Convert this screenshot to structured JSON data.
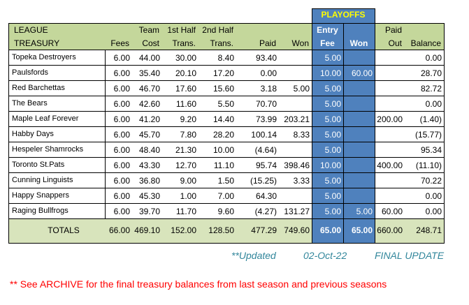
{
  "header": {
    "playoffs": "PLAYOFFS",
    "row1": [
      "LEAGUE",
      "",
      "Team",
      "1st Half",
      "2nd Half",
      "",
      "",
      "Entry",
      "",
      "Paid",
      ""
    ],
    "row2": [
      "TREASURY",
      "Fees",
      "Cost",
      "Trans.",
      "Trans.",
      "Paid",
      "Won",
      "Fee",
      "Won",
      "Out",
      "Balance"
    ]
  },
  "rows": [
    [
      "Topeka Destroyers",
      "6.00",
      "44.00",
      "30.00",
      "8.40",
      "93.40",
      "",
      "5.00",
      "",
      "",
      "0.00"
    ],
    [
      "Paulsfords",
      "6.00",
      "35.40",
      "20.10",
      "17.20",
      "0.00",
      "",
      "10.00",
      "60.00",
      "",
      "28.70"
    ],
    [
      "Red Barchettas",
      "6.00",
      "46.70",
      "17.60",
      "15.60",
      "3.18",
      "5.00",
      "5.00",
      "",
      "",
      "82.72"
    ],
    [
      "The Bears",
      "6.00",
      "42.60",
      "11.60",
      "5.50",
      "70.70",
      "",
      "5.00",
      "",
      "",
      "0.00"
    ],
    [
      "Maple Leaf Forever",
      "6.00",
      "41.20",
      "9.20",
      "14.40",
      "73.99",
      "203.21",
      "5.00",
      "",
      "200.00",
      "(1.40)"
    ],
    [
      "Habby Days",
      "6.00",
      "45.70",
      "7.80",
      "28.20",
      "100.14",
      "8.33",
      "5.00",
      "",
      "",
      "(15.77)"
    ],
    [
      "Hespeler Shamrocks",
      "6.00",
      "48.40",
      "21.30",
      "10.00",
      "(4.64)",
      "",
      "5.00",
      "",
      "",
      "95.34"
    ],
    [
      "Toronto St.Pats",
      "6.00",
      "43.30",
      "12.70",
      "11.10",
      "95.74",
      "398.46",
      "10.00",
      "",
      "400.00",
      "(11.10)"
    ],
    [
      "Cunning Linguists",
      "6.00",
      "36.80",
      "9.00",
      "1.50",
      "(15.25)",
      "3.33",
      "5.00",
      "",
      "",
      "70.22"
    ],
    [
      "Happy Snappers",
      "6.00",
      "45.30",
      "1.00",
      "7.00",
      "64.30",
      "",
      "5.00",
      "",
      "",
      "0.00"
    ],
    [
      "Raging Bullfrogs",
      "6.00",
      "39.70",
      "11.70",
      "9.60",
      "(4.27)",
      "131.27",
      "5.00",
      "5.00",
      "60.00",
      "0.00"
    ]
  ],
  "totals": [
    "TOTALS",
    "66.00",
    "469.10",
    "152.00",
    "128.50",
    "477.29",
    "749.60",
    "65.00",
    "65.00",
    "660.00",
    "248.71"
  ],
  "footer": {
    "updated_label": "**Updated",
    "updated_date": "02-Oct-22",
    "final": "FINAL UPDATE",
    "note": "** See ARCHIVE for the final treasury balances from last season and previous seasons"
  },
  "colors": {
    "header_green": "#c4d79b",
    "totals_green": "#d8e4bc",
    "playoff_blue": "#4f81bd",
    "teal_text": "#31869b",
    "note_red": "#ff0000",
    "playoffs_yellow": "#ffff00"
  }
}
